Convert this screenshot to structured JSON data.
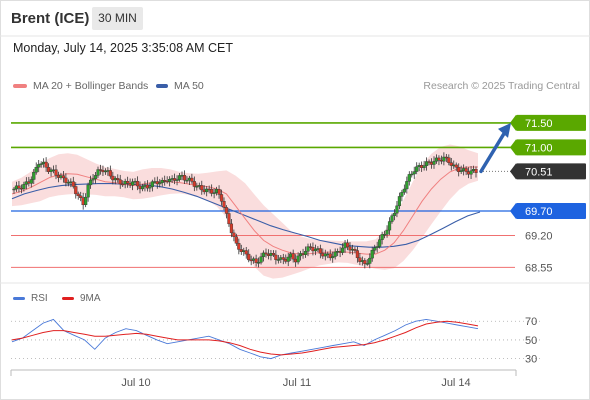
{
  "header": {
    "title": "Brent (ICE)",
    "timeframe": "30 MIN",
    "datetime": "Monday, July 14, 2025 3:35:08 AM CET"
  },
  "legend": {
    "ma20_label": "MA 20 + Bollinger Bands",
    "ma50_label": "MA 50",
    "credit": "Research © 2025 Trading Central"
  },
  "rsi_legend": {
    "rsi_label": "RSI",
    "ma_label": "9MA"
  },
  "colors": {
    "candle_up": "#2e9e2e",
    "candle_down": "#d63a2a",
    "bollinger_fill": "#f9d7d7",
    "ma20": "#f08080",
    "ma50": "#3a5ea8",
    "level_green": "#5aa800",
    "level_blue": "#1e63e0",
    "level_red": "#f07070",
    "current": "#333333",
    "arrow": "#2f62b0",
    "rsi": "#4a79d8",
    "rsi_ma": "#e02020"
  },
  "chart_data": [
    {
      "type": "candlestick",
      "title": "Brent (ICE) 30 MIN",
      "y_scale_hint": "price",
      "xlabels": [
        "Jul 10",
        "Jul 11",
        "Jul 14"
      ],
      "levels": [
        {
          "value": 71.5,
          "label": "71.50",
          "kind": "resistance",
          "color": "#5aa800"
        },
        {
          "value": 71.0,
          "label": "71.00",
          "kind": "resistance",
          "color": "#5aa800"
        },
        {
          "value": 70.51,
          "label": "70.51",
          "kind": "current",
          "color": "#333333"
        },
        {
          "value": 69.7,
          "label": "69.70",
          "kind": "pivot",
          "color": "#1e63e0"
        },
        {
          "value": 69.2,
          "label": "69.20",
          "kind": "support",
          "color": "#f07070"
        },
        {
          "value": 68.55,
          "label": "68.55",
          "kind": "support",
          "color": "#f07070"
        }
      ],
      "ylim": [
        68.25,
        72.05
      ],
      "series": [
        {
          "name": "MA 20 + Bollinger Bands"
        },
        {
          "name": "MA 50"
        }
      ],
      "close_path": [
        70.15,
        70.18,
        70.22,
        70.3,
        70.45,
        70.7,
        70.65,
        70.55,
        70.5,
        70.42,
        70.35,
        70.3,
        70.2,
        70.0,
        69.85,
        70.2,
        70.4,
        70.5,
        70.55,
        70.48,
        70.38,
        70.3,
        70.28,
        70.25,
        70.3,
        70.22,
        70.18,
        70.2,
        70.26,
        70.3,
        70.28,
        70.35,
        70.32,
        70.38,
        70.4,
        70.35,
        70.3,
        70.2,
        70.15,
        70.12,
        70.1,
        70.1,
        69.95,
        69.6,
        69.3,
        69.0,
        68.9,
        68.8,
        68.7,
        68.65,
        68.75,
        68.85,
        68.8,
        68.75,
        68.7,
        68.72,
        68.78,
        68.7,
        68.8,
        68.9,
        68.95,
        68.92,
        68.85,
        68.8,
        68.78,
        68.82,
        68.9,
        69.0,
        68.95,
        68.85,
        68.7,
        68.6,
        68.75,
        68.95,
        69.1,
        69.25,
        69.45,
        69.7,
        69.95,
        70.2,
        70.4,
        70.55,
        70.6,
        70.65,
        70.68,
        70.72,
        70.75,
        70.78,
        70.72,
        70.6,
        70.55,
        70.52,
        70.5,
        70.51
      ],
      "ma20_path": [
        70.05,
        70.1,
        70.18,
        70.28,
        70.38,
        70.44,
        70.46,
        70.45,
        70.4,
        70.35,
        70.3,
        70.28,
        70.25,
        70.22,
        70.25,
        70.28,
        70.3,
        70.3,
        70.28,
        70.25,
        70.22,
        70.2,
        70.15,
        70.05,
        69.8,
        69.55,
        69.3,
        69.1,
        68.98,
        68.9,
        68.84,
        68.82,
        68.83,
        68.85,
        68.86,
        68.87,
        68.86,
        68.84,
        68.82,
        68.82,
        68.9,
        69.05,
        69.3,
        69.6,
        69.9,
        70.15,
        70.35,
        70.5,
        70.58,
        70.6,
        70.6
      ],
      "ma50_path": [
        69.95,
        70.05,
        70.12,
        70.18,
        70.22,
        70.24,
        70.25,
        70.26,
        70.26,
        70.25,
        70.24,
        70.23,
        70.2,
        70.15,
        70.08,
        70.0,
        69.9,
        69.8,
        69.7,
        69.6,
        69.5,
        69.4,
        69.32,
        69.25,
        69.18,
        69.1,
        69.05,
        69.0,
        68.98,
        68.96,
        68.96,
        68.98,
        69.02,
        69.1,
        69.22,
        69.35,
        69.48,
        69.6,
        69.68
      ]
    },
    {
      "type": "line",
      "title": "RSI",
      "yticks": [
        70,
        50,
        30
      ],
      "ylim": [
        20,
        82
      ],
      "series": [
        {
          "name": "RSI",
          "values": [
            48,
            52,
            60,
            68,
            72,
            60,
            55,
            50,
            40,
            52,
            58,
            62,
            60,
            55,
            50,
            46,
            48,
            50,
            52,
            54,
            50,
            46,
            40,
            36,
            32,
            30,
            34,
            36,
            38,
            40,
            42,
            44,
            46,
            48,
            44,
            50,
            55,
            60,
            66,
            70,
            72,
            70,
            68,
            66,
            64,
            62
          ]
        },
        {
          "name": "9MA",
          "values": [
            50,
            52,
            55,
            58,
            60,
            60,
            58,
            56,
            54,
            54,
            55,
            56,
            57,
            56,
            54,
            52,
            50,
            50,
            50,
            50,
            49,
            47,
            44,
            40,
            37,
            35,
            34,
            35,
            36,
            38,
            40,
            42,
            43,
            44,
            45,
            47,
            50,
            54,
            58,
            63,
            67,
            69,
            70,
            69,
            67,
            65
          ]
        }
      ]
    }
  ]
}
